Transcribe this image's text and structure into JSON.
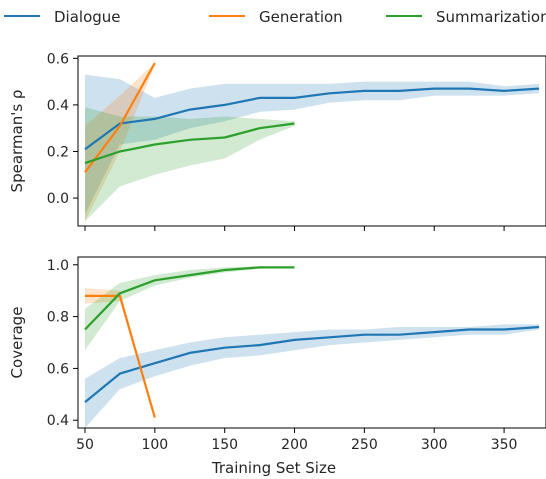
{
  "legend": [
    {
      "name": "Dialogue",
      "color": "#1f77b4"
    },
    {
      "name": "Generation",
      "color": "#ff7f0e"
    },
    {
      "name": "Summarization",
      "color": "#2ca02c"
    }
  ],
  "chart_data": [
    {
      "type": "line",
      "ylabel": "Spearman's ρ",
      "xlabel": "",
      "xlim": [
        45,
        380
      ],
      "ylim": [
        -0.12,
        0.61
      ],
      "xticks": [
        50,
        100,
        150,
        200,
        250,
        300,
        350
      ],
      "yticks": [
        0.0,
        0.2,
        0.4,
        0.6
      ],
      "ytick_labels": [
        "0.0",
        "0.2",
        "0.4",
        "0.6"
      ],
      "show_xtick_labels": false,
      "series": [
        {
          "name": "Dialogue",
          "color": "#1f77b4",
          "x": [
            50,
            75,
            100,
            125,
            150,
            175,
            200,
            225,
            250,
            275,
            300,
            325,
            350,
            375
          ],
          "y": [
            0.21,
            0.32,
            0.34,
            0.38,
            0.4,
            0.43,
            0.43,
            0.45,
            0.46,
            0.46,
            0.47,
            0.47,
            0.46,
            0.47
          ],
          "lo": [
            -0.07,
            0.23,
            0.25,
            0.3,
            0.33,
            0.37,
            0.38,
            0.41,
            0.42,
            0.42,
            0.44,
            0.44,
            0.44,
            0.45
          ],
          "hi": [
            0.53,
            0.51,
            0.43,
            0.47,
            0.49,
            0.49,
            0.49,
            0.49,
            0.5,
            0.5,
            0.5,
            0.5,
            0.48,
            0.49
          ]
        },
        {
          "name": "Generation",
          "color": "#ff7f0e",
          "x": [
            50,
            75,
            100
          ],
          "y": [
            0.11,
            0.31,
            0.58
          ],
          "lo": [
            -0.1,
            0.2,
            0.57
          ],
          "hi": [
            0.31,
            0.44,
            0.58
          ]
        },
        {
          "name": "Summarization",
          "color": "#2ca02c",
          "x": [
            50,
            75,
            100,
            125,
            150,
            175,
            200
          ],
          "y": [
            0.15,
            0.2,
            0.23,
            0.25,
            0.26,
            0.3,
            0.32
          ],
          "lo": [
            -0.1,
            0.05,
            0.1,
            0.14,
            0.17,
            0.25,
            0.31
          ],
          "hi": [
            0.39,
            0.35,
            0.35,
            0.34,
            0.35,
            0.34,
            0.33
          ]
        }
      ]
    },
    {
      "type": "line",
      "ylabel": "Coverage",
      "xlabel": "Training Set Size",
      "xlim": [
        45,
        380
      ],
      "ylim": [
        0.37,
        1.03
      ],
      "xticks": [
        50,
        100,
        150,
        200,
        250,
        300,
        350
      ],
      "xtick_labels": [
        "50",
        "100",
        "150",
        "200",
        "250",
        "300",
        "350"
      ],
      "yticks": [
        0.4,
        0.6,
        0.8,
        1.0
      ],
      "ytick_labels": [
        "0.4",
        "0.6",
        "0.8",
        "1.0"
      ],
      "show_xtick_labels": true,
      "series": [
        {
          "name": "Dialogue",
          "color": "#1f77b4",
          "x": [
            50,
            75,
            100,
            125,
            150,
            175,
            200,
            225,
            250,
            275,
            300,
            325,
            350,
            375
          ],
          "y": [
            0.47,
            0.58,
            0.62,
            0.66,
            0.68,
            0.69,
            0.71,
            0.72,
            0.73,
            0.73,
            0.74,
            0.75,
            0.75,
            0.76
          ],
          "lo": [
            0.37,
            0.52,
            0.57,
            0.61,
            0.64,
            0.65,
            0.67,
            0.69,
            0.7,
            0.71,
            0.72,
            0.73,
            0.73,
            0.75
          ],
          "hi": [
            0.56,
            0.64,
            0.67,
            0.7,
            0.72,
            0.73,
            0.74,
            0.75,
            0.75,
            0.76,
            0.76,
            0.76,
            0.77,
            0.77
          ]
        },
        {
          "name": "Generation",
          "color": "#ff7f0e",
          "x": [
            50,
            75,
            100
          ],
          "y": [
            0.88,
            0.88,
            0.41
          ],
          "lo": [
            0.85,
            0.86,
            0.41
          ],
          "hi": [
            0.91,
            0.9,
            0.41
          ]
        },
        {
          "name": "Summarization",
          "color": "#2ca02c",
          "x": [
            50,
            75,
            100,
            125,
            150,
            175,
            200
          ],
          "y": [
            0.75,
            0.89,
            0.94,
            0.96,
            0.98,
            0.99,
            0.99
          ],
          "lo": [
            0.67,
            0.86,
            0.92,
            0.95,
            0.97,
            0.985,
            0.99
          ],
          "hi": [
            0.83,
            0.93,
            0.96,
            0.98,
            0.99,
            0.995,
            0.99
          ]
        }
      ]
    }
  ]
}
